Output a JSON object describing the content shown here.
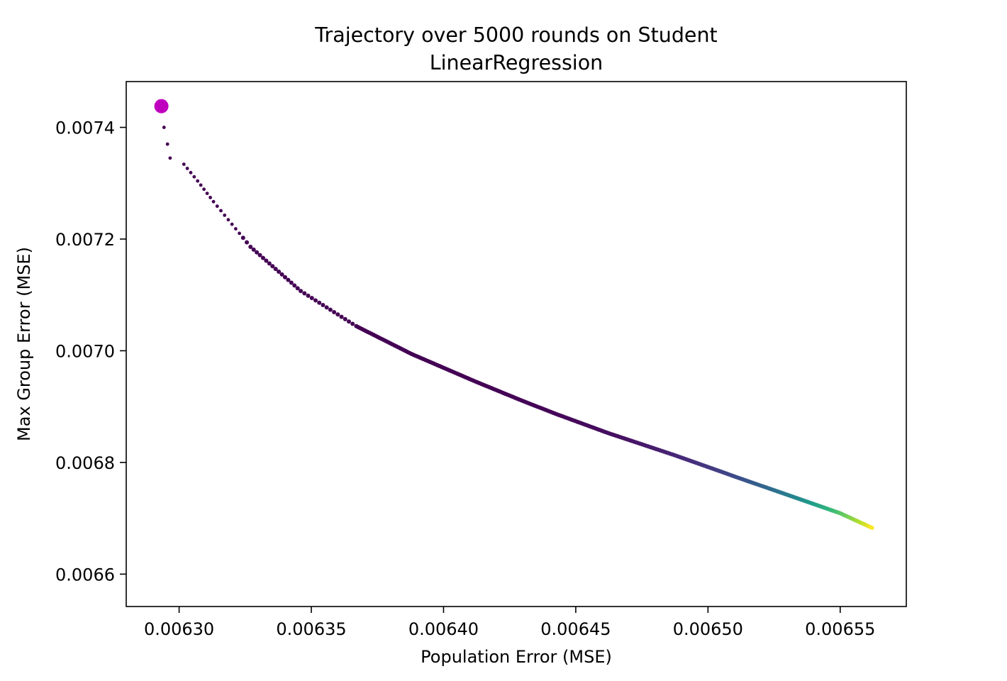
{
  "chart_data": {
    "type": "scatter",
    "title": "Trajectory over 5000 rounds on Student",
    "subtitle": "LinearRegression",
    "xlabel": "Population Error (MSE)",
    "ylabel": "Max Group Error (MSE)",
    "xlim": [
      0.00628,
      0.006575
    ],
    "ylim": [
      0.006542,
      0.007482
    ],
    "xticks": [
      0.0063,
      0.00635,
      0.0064,
      0.00645,
      0.0065,
      0.00655
    ],
    "xtick_labels": [
      "0.00630",
      "0.00635",
      "0.00640",
      "0.00645",
      "0.00650",
      "0.00655"
    ],
    "yticks": [
      0.0066,
      0.0068,
      0.007,
      0.0072,
      0.0074
    ],
    "ytick_labels": [
      "0.0066",
      "0.0068",
      "0.0070",
      "0.0072",
      "0.0074"
    ],
    "grid": false,
    "colormap": "viridis",
    "colormap_stops": [
      "#440154",
      "#482878",
      "#3e4989",
      "#31688e",
      "#26828e",
      "#1f9e89",
      "#35b779",
      "#6ece58",
      "#b5de2b",
      "#fde725"
    ],
    "highlight_point": {
      "x": 0.0062933,
      "y": 0.007438,
      "color": "#bf00bf"
    },
    "trajectory": {
      "rounds": 5000,
      "anchors": [
        [
          0.0062943,
          0.0074
        ],
        [
          0.0062956,
          0.00737
        ],
        [
          0.0062966,
          0.007345
        ],
        [
          0.0063018,
          0.007334
        ],
        [
          0.006307,
          0.007304
        ],
        [
          0.006313,
          0.007267
        ],
        [
          0.006327,
          0.007186
        ],
        [
          0.006346,
          0.007107
        ],
        [
          0.006367,
          0.007044
        ],
        [
          0.006388,
          0.006994
        ],
        [
          0.006412,
          0.006945
        ],
        [
          0.00643,
          0.00691
        ],
        [
          0.006443,
          0.006886
        ],
        [
          0.006462,
          0.006853
        ],
        [
          0.006488,
          0.006812
        ],
        [
          0.00651,
          0.006775
        ],
        [
          0.00653,
          0.006742
        ],
        [
          0.00655,
          0.006709
        ],
        [
          0.006562,
          0.006683
        ]
      ]
    }
  }
}
